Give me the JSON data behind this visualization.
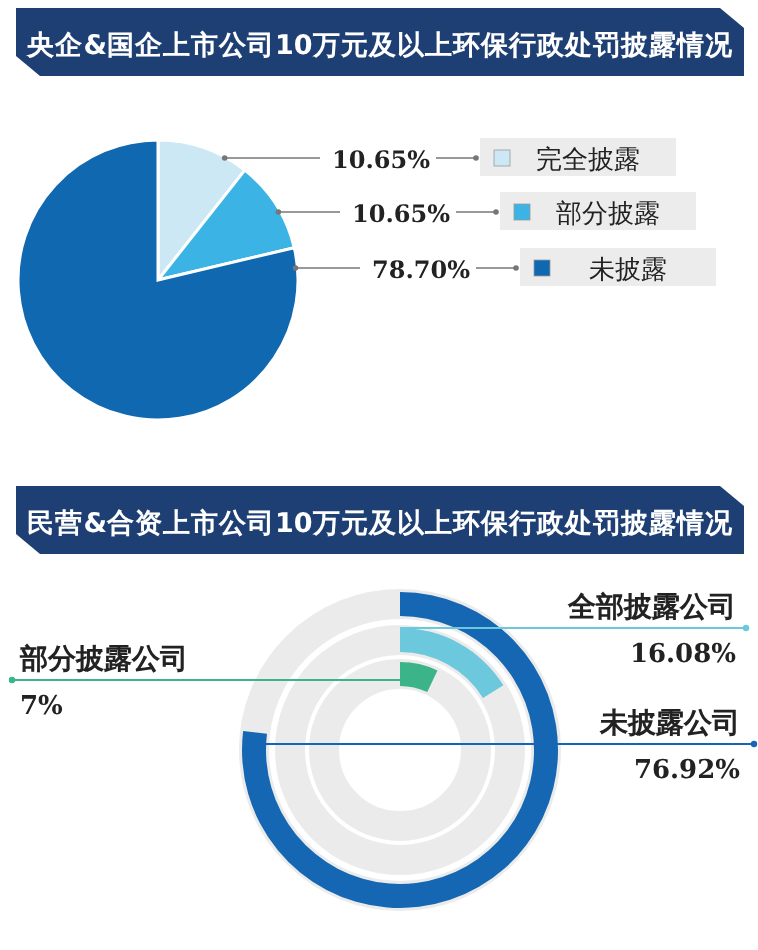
{
  "chart_data": [
    {
      "type": "pie",
      "title": "央企&国企上市公司10万元及以上环保行政处罚披露情况",
      "categories": [
        "完全披露",
        "部分披露",
        "未披露"
      ],
      "values": [
        10.65,
        10.65,
        78.7
      ],
      "value_labels": [
        "10.65%",
        "10.65%",
        "78.70%"
      ],
      "colors": [
        "#cde8f5",
        "#3bb4e5",
        "#1068b0"
      ],
      "legend": "right"
    },
    {
      "type": "other",
      "title": "民营&合资上市公司10万元及以上环保行政处罚披露情况",
      "categories": [
        "未披露公司",
        "全部披露公司",
        "部分披露公司"
      ],
      "values": [
        76.92,
        16.08,
        7
      ],
      "value_labels": [
        "76.92%",
        "16.08%",
        "7%"
      ],
      "colors": [
        "#1566b3",
        "#6cc8dc",
        "#3cb48a"
      ]
    }
  ]
}
